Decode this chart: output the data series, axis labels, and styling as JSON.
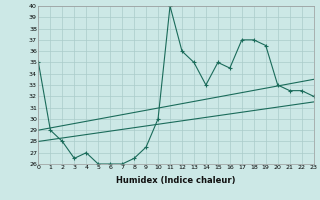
{
  "xlabel": "Humidex (Indice chaleur)",
  "background_color": "#cce8e6",
  "grid_color": "#aaccca",
  "line_color": "#1a6b5a",
  "ylim": [
    26,
    40
  ],
  "xlim": [
    0,
    23
  ],
  "yticks": [
    26,
    27,
    28,
    29,
    30,
    31,
    32,
    33,
    34,
    35,
    36,
    37,
    38,
    39,
    40
  ],
  "xticks": [
    0,
    1,
    2,
    3,
    4,
    5,
    6,
    7,
    8,
    9,
    10,
    11,
    12,
    13,
    14,
    15,
    16,
    17,
    18,
    19,
    20,
    21,
    22,
    23
  ],
  "series1_x": [
    0,
    1,
    2,
    3,
    4,
    5,
    6,
    7,
    8,
    9,
    10,
    11,
    12,
    13,
    14,
    15,
    16,
    17,
    18,
    19,
    20,
    21,
    22,
    23
  ],
  "series1_y": [
    35,
    29,
    28,
    26.5,
    27,
    26,
    26,
    26,
    26.5,
    27.5,
    30,
    40,
    36,
    35,
    33,
    35,
    34.5,
    37,
    37,
    36.5,
    33,
    32.5,
    32.5,
    32
  ],
  "series2_x": [
    0,
    23
  ],
  "series2_y": [
    29.0,
    33.5
  ],
  "series3_x": [
    0,
    23
  ],
  "series3_y": [
    28.0,
    31.5
  ]
}
